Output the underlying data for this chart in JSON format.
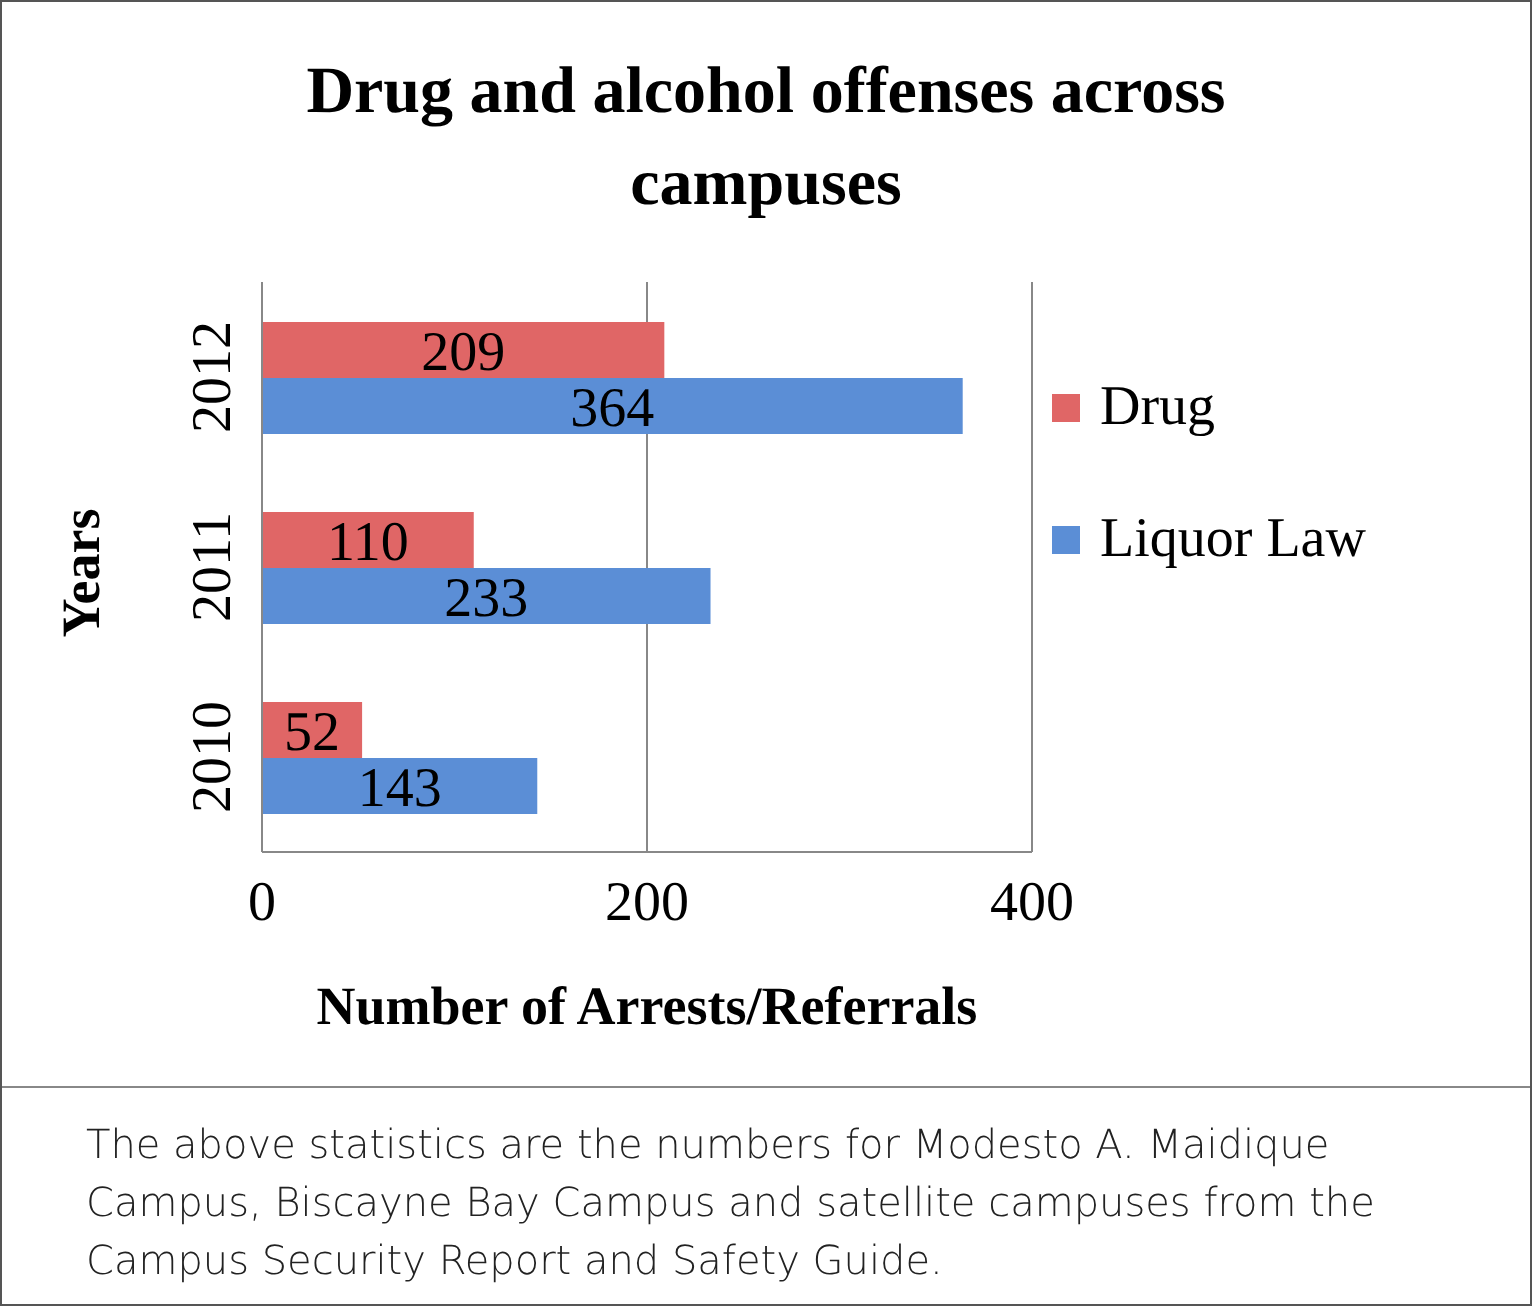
{
  "chart_data": {
    "type": "bar",
    "orientation": "horizontal",
    "title": "Drug and alcohol offenses across campuses",
    "xlabel": "Number of Arrests/Referrals",
    "ylabel": "Years",
    "categories": [
      "2012",
      "2011",
      "2010"
    ],
    "series": [
      {
        "name": "Drug",
        "color": "#e06666",
        "values": [
          209,
          110,
          52
        ]
      },
      {
        "name": "Liquor Law",
        "color": "#5b8ed6",
        "values": [
          364,
          233,
          143
        ]
      }
    ],
    "xlim": [
      0,
      400
    ],
    "xticks": [
      0,
      200,
      400
    ],
    "grid": "x",
    "legend": "right",
    "data_labels": true,
    "annotations": [
      "The above statistics are the numbers for Modesto A. Maidique Campus, Biscayne Bay Campus and satellite campuses from the Campus Security Report and Safety Guide."
    ]
  }
}
